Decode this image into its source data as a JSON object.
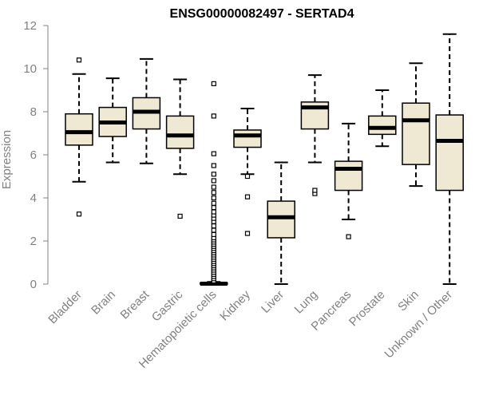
{
  "chart_data": {
    "type": "boxplot",
    "title": "ENSG00000082497 - SERTAD4",
    "xlabel": "",
    "ylabel": "Expression",
    "ylim": [
      0,
      12
    ],
    "yticks": [
      0,
      2,
      4,
      6,
      8,
      10,
      12
    ],
    "grid": false,
    "box_color": "#EFE8D2",
    "categories": [
      "Bladder",
      "Brain",
      "Breast",
      "Gastric",
      "Hematopoietic cells",
      "Kidney",
      "Liver",
      "Lung",
      "Pancreas",
      "Prostate",
      "Skin",
      "Unknown / Other"
    ],
    "series": [
      {
        "whisker_low": 4.75,
        "q1": 6.45,
        "median": 7.05,
        "q3": 7.9,
        "whisker_high": 9.75,
        "outliers": [
          3.25,
          10.4
        ]
      },
      {
        "whisker_low": 5.65,
        "q1": 6.85,
        "median": 7.5,
        "q3": 8.2,
        "whisker_high": 9.55,
        "outliers": []
      },
      {
        "whisker_low": 5.6,
        "q1": 7.2,
        "median": 8.0,
        "q3": 8.65,
        "whisker_high": 10.45,
        "outliers": []
      },
      {
        "whisker_low": 5.1,
        "q1": 6.3,
        "median": 6.9,
        "q3": 7.8,
        "whisker_high": 9.5,
        "outliers": [
          3.15
        ]
      },
      {
        "whisker_low": 0,
        "q1": 0,
        "median": 0.02,
        "q3": 0.05,
        "whisker_high": 0.1,
        "outliers": [
          0.15,
          0.25,
          0.35,
          0.45,
          0.55,
          0.65,
          0.75,
          0.85,
          0.95,
          1.05,
          1.15,
          1.25,
          1.35,
          1.45,
          1.55,
          1.65,
          1.75,
          1.85,
          1.95,
          2.05,
          2.15,
          2.3,
          2.5,
          2.7,
          2.9,
          3.05,
          3.2,
          3.35,
          3.55,
          3.75,
          4.0,
          4.25,
          4.5,
          4.8,
          5.1,
          5.5,
          6.05,
          7.8,
          9.3
        ]
      },
      {
        "whisker_low": 5.1,
        "q1": 6.35,
        "median": 6.9,
        "q3": 7.15,
        "whisker_high": 8.15,
        "outliers": [
          2.35,
          4.05,
          5.0
        ]
      },
      {
        "whisker_low": 0,
        "q1": 2.15,
        "median": 3.1,
        "q3": 3.85,
        "whisker_high": 5.65,
        "outliers": []
      },
      {
        "whisker_low": 5.65,
        "q1": 7.2,
        "median": 8.2,
        "q3": 8.45,
        "whisker_high": 9.7,
        "outliers": [
          4.2,
          4.35
        ]
      },
      {
        "whisker_low": 3.0,
        "q1": 4.35,
        "median": 5.35,
        "q3": 5.7,
        "whisker_high": 7.45,
        "outliers": [
          2.2
        ]
      },
      {
        "whisker_low": 6.4,
        "q1": 6.95,
        "median": 7.25,
        "q3": 7.8,
        "whisker_high": 9.0,
        "outliers": []
      },
      {
        "whisker_low": 4.55,
        "q1": 5.55,
        "median": 7.6,
        "q3": 8.4,
        "whisker_high": 10.25,
        "outliers": []
      },
      {
        "whisker_low": 0,
        "q1": 4.35,
        "median": 6.65,
        "q3": 7.85,
        "whisker_high": 11.6,
        "outliers": []
      }
    ]
  }
}
